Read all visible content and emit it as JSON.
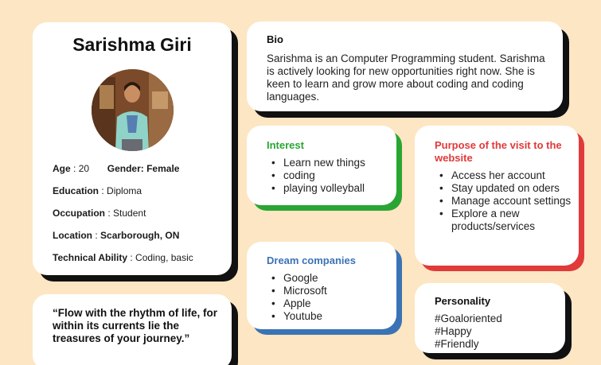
{
  "profile": {
    "name": "Sarishma Giri",
    "age_label": "Age",
    "age_value": "20",
    "gender_label": "Gender:",
    "gender_value": "Female",
    "education_label": "Education",
    "education_value": "Diploma",
    "occupation_label": "Occupation",
    "occupation_value": "Student",
    "location_label": "Location",
    "location_value": "Scarborough, ON",
    "tech_label": "Technical Ability",
    "tech_value": "Coding, basic"
  },
  "quote": {
    "text": "“Flow with the rhythm of life, for within its currents lie the treasures of your journey.”"
  },
  "bio": {
    "title": "Bio",
    "text": "Sarishma is an Computer Programming student. Sarishma is actively looking for new opportunities right now. She is keen to learn and grow more about coding and coding languages."
  },
  "interest": {
    "title": "Interest",
    "items": [
      "Learn new things",
      "coding",
      "playing volleyball"
    ]
  },
  "purpose": {
    "title": "Purpose of the visit to the website",
    "items": [
      "Access her account",
      "Stay updated on oders",
      "Manage account settings",
      "Explore a new products/services"
    ]
  },
  "dream": {
    "title": "Dream companies",
    "items": [
      "Google",
      "Microsoft",
      "Apple",
      "Youtube"
    ]
  },
  "personality": {
    "title": "Personality",
    "tags": [
      "#Goaloriented",
      "#Happy",
      "#Friendly"
    ]
  },
  "colors": {
    "background": "#fde6c3",
    "interest_accent": "#2aa534",
    "purpose_accent": "#e03a3a",
    "dream_accent": "#3a73b5",
    "shadow": "#111111"
  }
}
